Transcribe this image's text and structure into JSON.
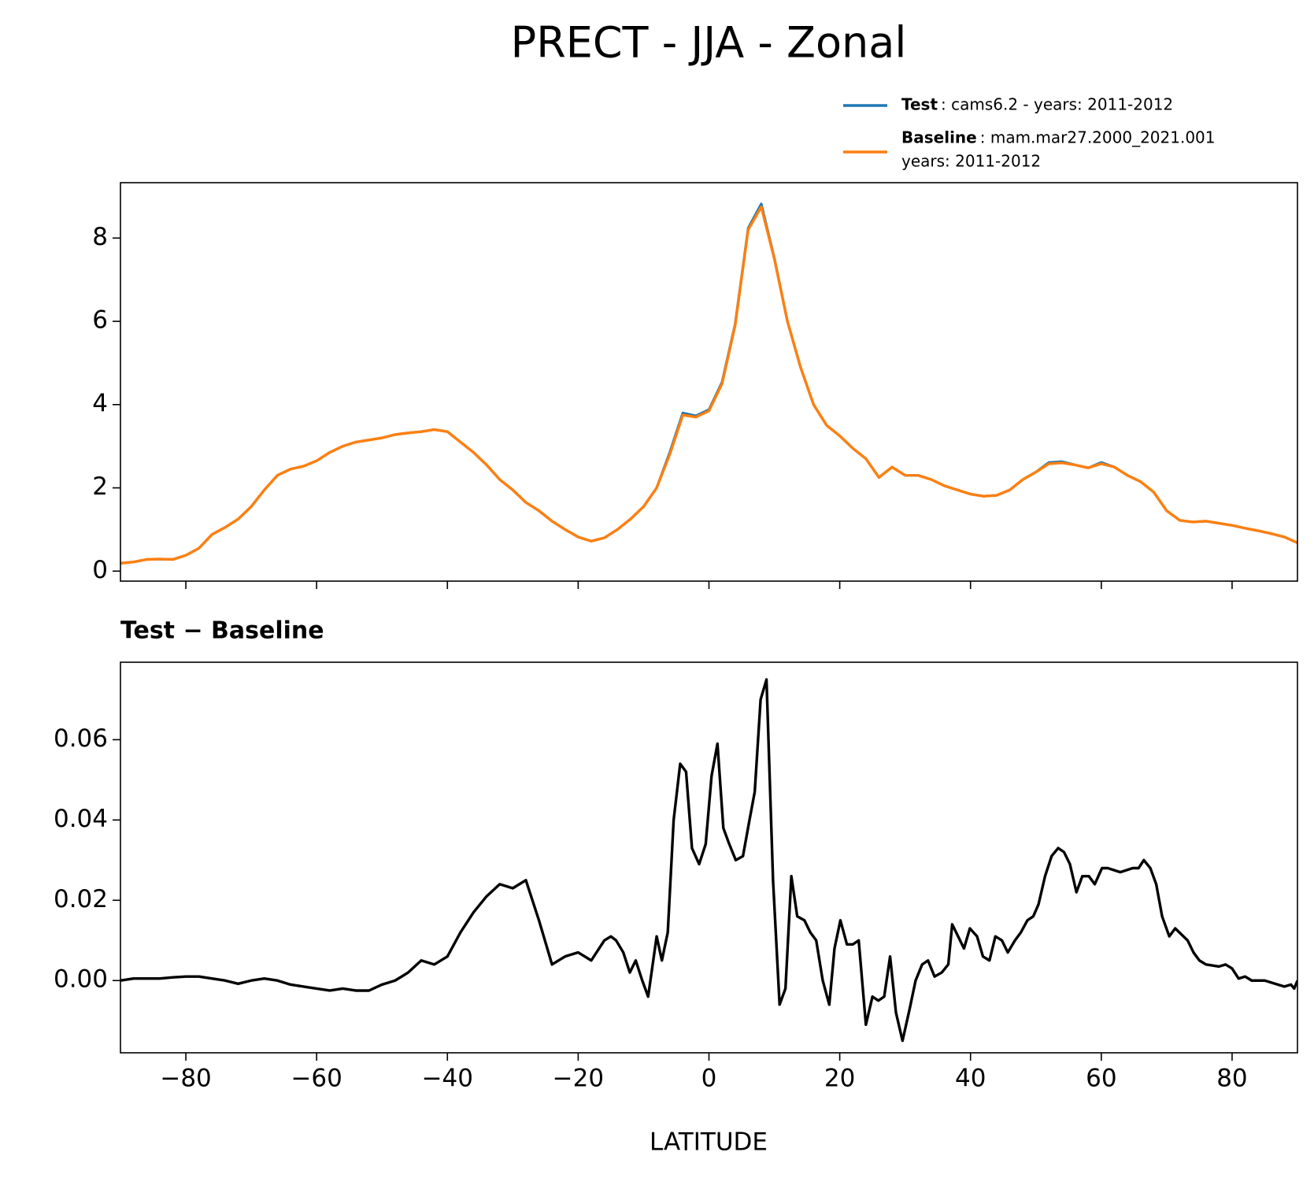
{
  "chart_data": [
    {
      "type": "line",
      "title": "PRECT - JJA - Zonal",
      "x": [
        -90,
        -88,
        -86,
        -84,
        -82,
        -80,
        -78,
        -76,
        -74,
        -72,
        -70,
        -68,
        -66,
        -64,
        -62,
        -60,
        -58,
        -56,
        -54,
        -52,
        -50,
        -48,
        -46,
        -44,
        -42,
        -40,
        -38,
        -36,
        -34,
        -32,
        -30,
        -28,
        -26,
        -24,
        -22,
        -20,
        -18,
        -16,
        -14,
        -12,
        -10,
        -8,
        -6,
        -4,
        -2,
        0,
        2,
        4,
        6,
        8,
        10,
        12,
        14,
        16,
        18,
        20,
        22,
        24,
        26,
        28,
        30,
        32,
        34,
        36,
        38,
        40,
        42,
        44,
        46,
        48,
        50,
        52,
        54,
        56,
        58,
        60,
        62,
        64,
        66,
        68,
        70,
        72,
        74,
        76,
        78,
        80,
        82,
        84,
        86,
        88,
        90
      ],
      "series": [
        {
          "name": "Test",
          "description": [
            ": cams6.2 - years: 2011-2012"
          ],
          "color": "#1f77b4",
          "values": [
            0.19,
            0.22,
            0.28,
            0.29,
            0.28,
            0.38,
            0.55,
            0.88,
            1.05,
            1.25,
            1.55,
            1.95,
            2.3,
            2.45,
            2.52,
            2.65,
            2.85,
            3.0,
            3.1,
            3.15,
            3.2,
            3.28,
            3.32,
            3.35,
            3.4,
            3.35,
            3.1,
            2.85,
            2.55,
            2.2,
            1.95,
            1.65,
            1.45,
            1.2,
            1.0,
            0.82,
            0.72,
            0.8,
            1.0,
            1.25,
            1.55,
            2.0,
            2.85,
            3.8,
            3.73,
            3.88,
            4.54,
            5.93,
            8.24,
            8.82,
            7.52,
            6.0,
            4.9,
            4.0,
            3.5,
            3.25,
            2.95,
            2.7,
            2.25,
            2.5,
            2.3,
            2.3,
            2.2,
            2.05,
            1.95,
            1.85,
            1.8,
            1.82,
            1.95,
            2.2,
            2.38,
            2.61,
            2.63,
            2.55,
            2.48,
            2.61,
            2.5,
            2.3,
            2.15,
            1.9,
            1.45,
            1.22,
            1.18,
            1.2,
            1.15,
            1.1,
            1.03,
            0.97,
            0.9,
            0.82,
            0.68
          ]
        },
        {
          "name": "Baseline",
          "description": [
            ": mam.mar27.2000_2021.001",
            "years: 2011-2012"
          ],
          "color": "#ff7f0e",
          "values": [
            0.19,
            0.22,
            0.28,
            0.29,
            0.28,
            0.38,
            0.55,
            0.88,
            1.05,
            1.25,
            1.55,
            1.95,
            2.3,
            2.45,
            2.52,
            2.65,
            2.85,
            3.0,
            3.1,
            3.15,
            3.2,
            3.28,
            3.32,
            3.35,
            3.4,
            3.35,
            3.1,
            2.85,
            2.55,
            2.2,
            1.95,
            1.65,
            1.45,
            1.2,
            1.0,
            0.82,
            0.72,
            0.8,
            1.0,
            1.25,
            1.55,
            2.0,
            2.8,
            3.75,
            3.7,
            3.85,
            4.5,
            5.9,
            8.2,
            8.75,
            7.5,
            6.0,
            4.9,
            4.0,
            3.5,
            3.25,
            2.95,
            2.7,
            2.25,
            2.5,
            2.3,
            2.3,
            2.2,
            2.05,
            1.95,
            1.85,
            1.8,
            1.82,
            1.95,
            2.2,
            2.38,
            2.58,
            2.6,
            2.55,
            2.48,
            2.58,
            2.5,
            2.3,
            2.15,
            1.9,
            1.45,
            1.22,
            1.18,
            1.2,
            1.15,
            1.1,
            1.03,
            0.97,
            0.9,
            0.82,
            0.68
          ]
        }
      ],
      "xlim": [
        -90,
        90
      ],
      "ylim": [
        -0.24,
        9.33
      ],
      "yticks": [
        0,
        2,
        4,
        6,
        8
      ]
    },
    {
      "type": "line",
      "title": "Test − Baseline",
      "x_label": "LATITUDE",
      "x": [
        -90,
        -88,
        -86,
        -84,
        -82,
        -80,
        -78,
        -76,
        -74,
        -72,
        -70,
        -68,
        -66,
        -64,
        -62,
        -60,
        -58,
        -56,
        -54,
        -52,
        -50,
        -48,
        -46,
        -44,
        -42,
        -40,
        -38,
        -36,
        -34,
        -32,
        -30,
        -28,
        -26,
        -24,
        -22,
        -20,
        -18,
        -16,
        -15,
        -14.2,
        -13.1,
        -12.1,
        -11.2,
        -10.2,
        -9.3,
        -8.0,
        -7.2,
        -6.3,
        -5.4,
        -4.4,
        -3.5,
        -2.6,
        -1.5,
        -0.5,
        0.4,
        1.3,
        2.2,
        3.1,
        4.1,
        5.2,
        6.2,
        7.0,
        7.9,
        8.8,
        9.8,
        10.8,
        11.7,
        12.6,
        13.5,
        14.6,
        15.5,
        16.4,
        17.4,
        18.4,
        19.2,
        20.1,
        21.1,
        22.0,
        22.9,
        24.0,
        25.0,
        25.9,
        26.8,
        27.7,
        28.6,
        29.6,
        30.7,
        31.6,
        32.6,
        33.5,
        34.5,
        35.6,
        36.6,
        37.2,
        38.1,
        39.0,
        39.9,
        41.0,
        41.9,
        42.9,
        43.8,
        44.8,
        45.7,
        46.8,
        47.7,
        48.7,
        49.6,
        50.4,
        51.4,
        52.4,
        53.4,
        54.3,
        55.2,
        56.2,
        57.1,
        58.1,
        59.0,
        60.1,
        61.0,
        62.9,
        64.8,
        65.7,
        66.5,
        67.5,
        68.4,
        69.3,
        70.4,
        71.3,
        73.2,
        74.1,
        75.0,
        76,
        78,
        79,
        80,
        81,
        82,
        83,
        85,
        87,
        88,
        89,
        89.5,
        90
      ],
      "series": [
        {
          "name": "Test − Baseline",
          "color": "#000000",
          "values": [
            0.0,
            0.0005,
            0.0005,
            0.0005,
            0.0008,
            0.001,
            0.001,
            0.0005,
            0.0,
            -0.0008,
            0.0,
            0.0005,
            0.0,
            -0.001,
            -0.0015,
            -0.002,
            -0.0025,
            -0.002,
            -0.0025,
            -0.0025,
            -0.001,
            0.0,
            0.002,
            0.005,
            0.004,
            0.006,
            0.012,
            0.017,
            0.021,
            0.024,
            0.023,
            0.025,
            0.015,
            0.004,
            0.006,
            0.007,
            0.005,
            0.01,
            0.011,
            0.01,
            0.007,
            0.002,
            0.005,
            0.0,
            -0.004,
            0.011,
            0.005,
            0.012,
            0.04,
            0.054,
            0.052,
            0.033,
            0.029,
            0.034,
            0.051,
            0.059,
            0.038,
            0.034,
            0.03,
            0.031,
            0.04,
            0.047,
            0.07,
            0.075,
            0.025,
            -0.006,
            -0.002,
            0.026,
            0.016,
            0.015,
            0.012,
            0.01,
            0.0,
            -0.006,
            0.008,
            0.015,
            0.009,
            0.009,
            0.01,
            -0.011,
            -0.004,
            -0.005,
            -0.004,
            0.006,
            -0.008,
            -0.015,
            -0.007,
            0.0,
            0.004,
            0.005,
            0.001,
            0.002,
            0.004,
            0.014,
            0.011,
            0.008,
            0.013,
            0.011,
            0.006,
            0.005,
            0.011,
            0.01,
            0.007,
            0.01,
            0.012,
            0.015,
            0.016,
            0.019,
            0.026,
            0.031,
            0.033,
            0.032,
            0.029,
            0.022,
            0.026,
            0.026,
            0.024,
            0.028,
            0.028,
            0.027,
            0.028,
            0.028,
            0.03,
            0.028,
            0.024,
            0.016,
            0.011,
            0.013,
            0.01,
            0.007,
            0.005,
            0.004,
            0.0035,
            0.004,
            0.003,
            0.0005,
            0.001,
            0.0,
            0.0,
            -0.001,
            -0.0015,
            -0.001,
            -0.002,
            0.0
          ]
        }
      ],
      "xlim": [
        -90,
        90
      ],
      "xticks": [
        {
          "value": -80,
          "label": "−80"
        },
        {
          "value": -60,
          "label": "−60"
        },
        {
          "value": -40,
          "label": "−40"
        },
        {
          "value": -20,
          "label": "−20"
        },
        0,
        20,
        40,
        60,
        80
      ],
      "ylim": [
        -0.018,
        0.0793
      ],
      "yticks": [
        {
          "value": 0,
          "label": "0.00"
        },
        {
          "value": 0.02,
          "label": "0.02"
        },
        {
          "value": 0.04,
          "label": "0.04"
        },
        {
          "value": 0.06,
          "label": "0.06"
        }
      ]
    }
  ]
}
